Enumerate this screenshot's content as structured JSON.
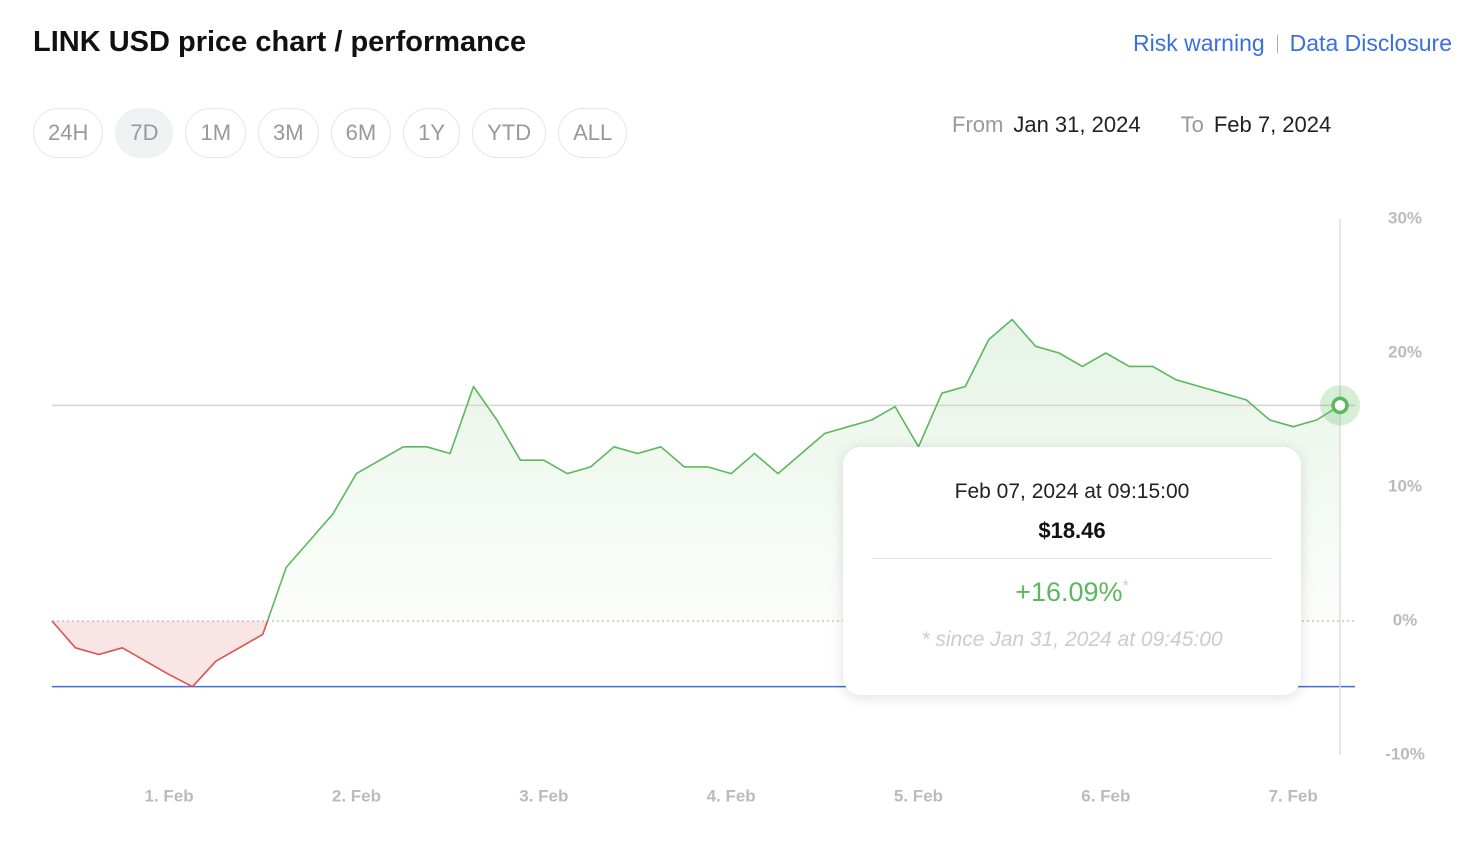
{
  "header": {
    "title": "LINK USD price chart / performance",
    "links": [
      "Risk warning",
      "Data Disclosure"
    ]
  },
  "range_buttons": [
    "24H",
    "7D",
    "1M",
    "3M",
    "6M",
    "1Y",
    "YTD",
    "ALL"
  ],
  "selected_range": 1,
  "date_range": {
    "from_label": "From",
    "from": "Jan 31, 2024",
    "to_label": "To",
    "to": "Feb 7, 2024"
  },
  "chart_data": {
    "type": "line",
    "categories": [
      null,
      null,
      null,
      null,
      null,
      "1. Feb",
      null,
      null,
      null,
      null,
      null,
      null,
      null,
      "2. Feb",
      null,
      null,
      null,
      null,
      null,
      null,
      null,
      "3. Feb",
      null,
      null,
      null,
      null,
      null,
      null,
      null,
      "4. Feb",
      null,
      null,
      null,
      null,
      null,
      null,
      null,
      "5. Feb",
      null,
      null,
      null,
      null,
      null,
      null,
      null,
      "6. Feb",
      null,
      null,
      null,
      null,
      null,
      null,
      null,
      "7. Feb",
      null,
      null
    ],
    "series": [
      {
        "name": "LINK USD",
        "color": "#5cb85c",
        "negative_color": "#d9534f",
        "values": [
          0,
          -2,
          -2.5,
          -2,
          -3,
          -4,
          -4.9,
          -3,
          -2,
          -1,
          4,
          6,
          8,
          11,
          12,
          13,
          13,
          12.5,
          17.5,
          15,
          12,
          12,
          11,
          11.5,
          13,
          12.5,
          13,
          11.5,
          11.5,
          11,
          12.5,
          11,
          12.5,
          14,
          14.5,
          15,
          16,
          13,
          17,
          17.5,
          21,
          22.5,
          20.5,
          20,
          19,
          20,
          19,
          19,
          18,
          17.5,
          17,
          16.5,
          15,
          14.5,
          15,
          16.09
        ]
      }
    ],
    "ylim": [
      -10,
      30
    ],
    "yticks": [
      {
        "value": -10,
        "label": "-10%"
      },
      {
        "value": 0,
        "label": "0%"
      },
      {
        "value": 10,
        "label": "10%"
      },
      {
        "value": 20,
        "label": "20%"
      },
      {
        "value": 30,
        "label": "30%"
      }
    ],
    "min_line_color": "#3b6fe0"
  },
  "tooltip": {
    "date": "Feb 07, 2024 at 09:15:00",
    "price": "$18.46",
    "change": "+16.09%",
    "asterisk": "*",
    "note": "* since Jan 31, 2024 at 09:45:00"
  }
}
